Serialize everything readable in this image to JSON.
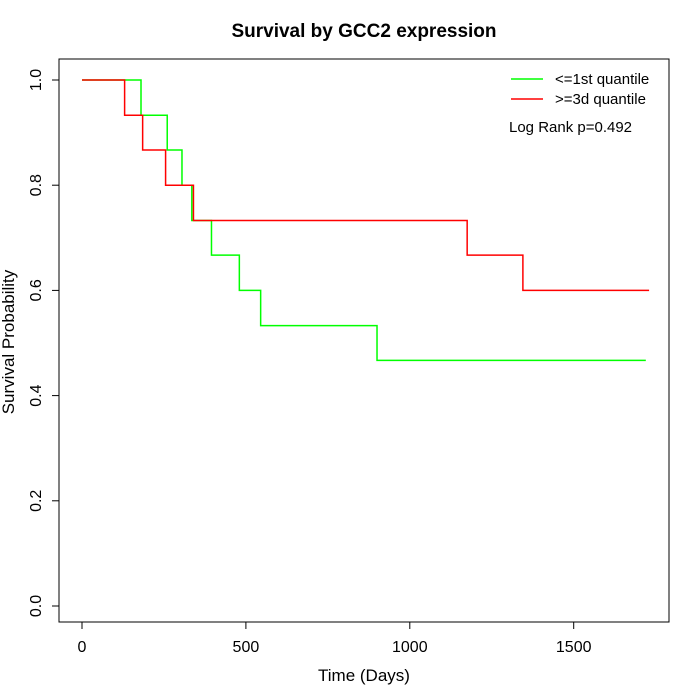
{
  "chart_data": {
    "type": "line",
    "step": true,
    "title": "Survival by GCC2 expression",
    "xlabel": "Time (Days)",
    "ylabel": "Survival Probability",
    "xlim": [
      0,
      1750
    ],
    "ylim": [
      0,
      1.0
    ],
    "x_ticks": [
      0,
      500,
      1000,
      1500
    ],
    "x_tick_labels": [
      "0",
      "500",
      "1000",
      "1500"
    ],
    "y_ticks": [
      0.0,
      0.2,
      0.4,
      0.6,
      0.8,
      1.0
    ],
    "y_tick_labels": [
      "0.0",
      "0.2",
      "0.4",
      "0.6",
      "0.8",
      "1.0"
    ],
    "grid": false,
    "legend_position": "top-right",
    "annotation": "Log Rank p=0.492",
    "series": [
      {
        "name": "<=1st quantile",
        "color": "#00ff00",
        "x": [
          0,
          180,
          260,
          305,
          335,
          395,
          480,
          545,
          900,
          1720
        ],
        "y": [
          1.0,
          0.933,
          0.867,
          0.8,
          0.733,
          0.667,
          0.6,
          0.533,
          0.467,
          0.467
        ]
      },
      {
        "name": ">=3d quantile",
        "color": "#ff0000",
        "x": [
          0,
          130,
          185,
          255,
          340,
          1175,
          1345,
          1730
        ],
        "y": [
          1.0,
          0.933,
          0.867,
          0.8,
          0.733,
          0.667,
          0.6,
          0.6
        ]
      }
    ]
  }
}
